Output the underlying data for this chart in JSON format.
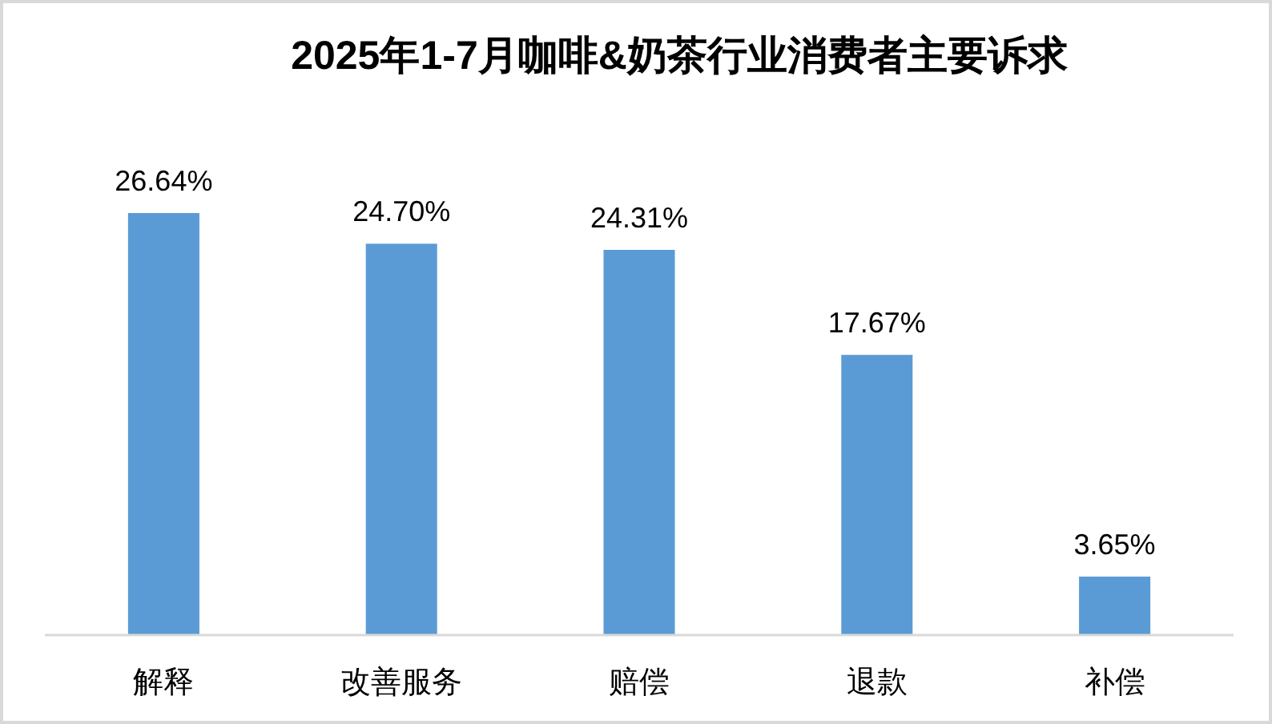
{
  "chart_data": {
    "type": "bar",
    "title": "2025年1-7月咖啡&奶茶行业消费者主要诉求",
    "categories": [
      "解释",
      "改善服务",
      "赔偿",
      "退款",
      "补偿"
    ],
    "values": [
      26.64,
      24.7,
      24.31,
      17.67,
      3.65
    ],
    "value_labels": [
      "26.64%",
      "24.70%",
      "24.31%",
      "17.67%",
      "3.65%"
    ],
    "color": "#5b9bd5"
  }
}
